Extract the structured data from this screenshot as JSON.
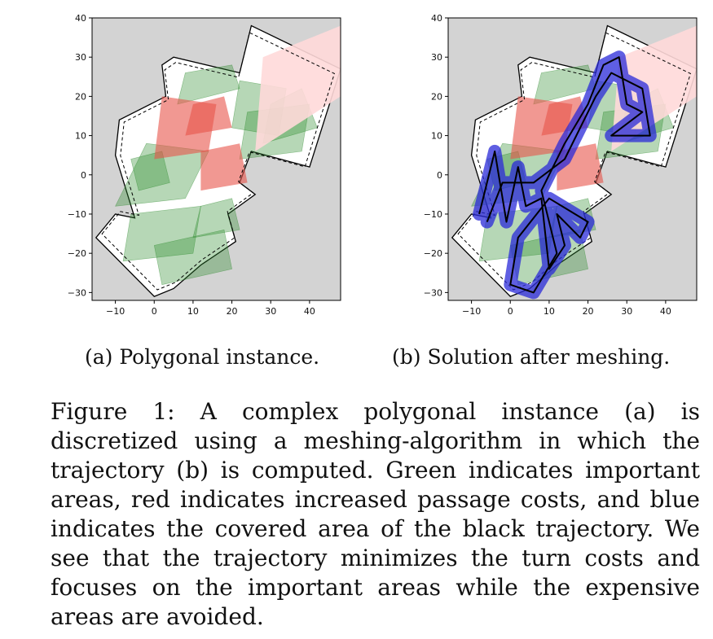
{
  "figure": {
    "subcaptions": {
      "a": "(a) Polygonal instance.",
      "b": "(b) Solution after meshing."
    },
    "caption": "Figure 1: A complex polygonal instance (a) is discretized using a meshing-algorithm in which the trajectory (b) is computed. Green indicates important areas, red indicates increased passage costs, and blue indicates the covered area of the black trajectory. We see that the trajectory minimizes the turn costs and focuses on the important areas while the expensive areas are avoided."
  },
  "chart_data": [
    {
      "type": "polygon-map",
      "panel": "a",
      "xlim": [
        -16,
        48
      ],
      "ylim": [
        -32,
        40
      ],
      "xticks": [
        -10,
        0,
        10,
        20,
        30,
        40
      ],
      "yticks": [
        -30,
        -20,
        -10,
        0,
        10,
        20,
        30,
        40
      ],
      "colors": {
        "background": "#d3d3d3",
        "important": "#2e8b2e",
        "costly": "#e8534a",
        "coverage": "#2a2ad8",
        "trajectory": "#000000"
      },
      "outline": [
        [
          -15,
          -16
        ],
        [
          -10,
          -10
        ],
        [
          -5,
          -11
        ],
        [
          -10,
          5
        ],
        [
          -9,
          14
        ],
        [
          3,
          20
        ],
        [
          2,
          28
        ],
        [
          5,
          30
        ],
        [
          22,
          26
        ],
        [
          25,
          38
        ],
        [
          48,
          27
        ],
        [
          40,
          2
        ],
        [
          25,
          6
        ],
        [
          22,
          -2
        ],
        [
          26,
          -5
        ],
        [
          19,
          -10
        ],
        [
          21,
          -17
        ],
        [
          12,
          -23
        ],
        [
          5,
          -29
        ],
        [
          0,
          -31
        ]
      ],
      "green_regions": [
        [
          [
            -10,
            -8
          ],
          [
            8,
            -6
          ],
          [
            14,
            6
          ],
          [
            -2,
            8
          ]
        ],
        [
          [
            -8,
            -22
          ],
          [
            10,
            -20
          ],
          [
            12,
            -8
          ],
          [
            -6,
            -10
          ]
        ],
        [
          [
            2,
            -28
          ],
          [
            20,
            -24
          ],
          [
            18,
            -14
          ],
          [
            0,
            -18
          ]
        ],
        [
          [
            22,
            4
          ],
          [
            38,
            6
          ],
          [
            40,
            18
          ],
          [
            24,
            16
          ]
        ],
        [
          [
            20,
            12
          ],
          [
            32,
            10
          ],
          [
            34,
            22
          ],
          [
            22,
            24
          ]
        ],
        [
          [
            28,
            8
          ],
          [
            42,
            12
          ],
          [
            38,
            22
          ],
          [
            30,
            18
          ]
        ],
        [
          [
            6,
            18
          ],
          [
            22,
            22
          ],
          [
            20,
            28
          ],
          [
            8,
            26
          ]
        ],
        [
          [
            -4,
            -4
          ],
          [
            4,
            -2
          ],
          [
            2,
            6
          ],
          [
            -6,
            4
          ]
        ],
        [
          [
            10,
            -16
          ],
          [
            22,
            -14
          ],
          [
            20,
            -6
          ],
          [
            12,
            -8
          ]
        ]
      ],
      "red_regions": [
        [
          [
            0,
            4
          ],
          [
            14,
            6
          ],
          [
            16,
            18
          ],
          [
            2,
            20
          ]
        ],
        [
          [
            8,
            10
          ],
          [
            20,
            12
          ],
          [
            18,
            20
          ],
          [
            10,
            18
          ]
        ],
        [
          [
            12,
            -4
          ],
          [
            24,
            -2
          ],
          [
            22,
            8
          ],
          [
            12,
            6
          ]
        ],
        [
          [
            26,
            6
          ],
          [
            48,
            20
          ],
          [
            48,
            38
          ],
          [
            28,
            30
          ]
        ]
      ]
    },
    {
      "type": "polygon-map",
      "panel": "b",
      "xlim": [
        -16,
        48
      ],
      "ylim": [
        -32,
        40
      ],
      "xticks": [
        -10,
        0,
        10,
        20,
        30,
        40
      ],
      "yticks": [
        -30,
        -20,
        -10,
        0,
        10,
        20,
        30,
        40
      ],
      "trajectory": [
        [
          -8,
          -10
        ],
        [
          -4,
          6
        ],
        [
          -1,
          -12
        ],
        [
          2,
          2
        ],
        [
          4,
          -8
        ],
        [
          8,
          -6
        ],
        [
          10,
          -24
        ],
        [
          14,
          -18
        ],
        [
          12,
          -10
        ],
        [
          18,
          -16
        ],
        [
          20,
          -12
        ],
        [
          10,
          -6
        ],
        [
          2,
          -16
        ],
        [
          0,
          -28
        ],
        [
          6,
          -30
        ],
        [
          12,
          -20
        ],
        [
          8,
          -4
        ],
        [
          14,
          8
        ],
        [
          20,
          18
        ],
        [
          24,
          28
        ],
        [
          28,
          30
        ],
        [
          30,
          18
        ],
        [
          34,
          16
        ],
        [
          26,
          10
        ],
        [
          36,
          10
        ],
        [
          34,
          22
        ],
        [
          26,
          26
        ],
        [
          22,
          20
        ],
        [
          14,
          4
        ],
        [
          6,
          -2
        ],
        [
          -2,
          -2
        ],
        [
          -6,
          -12
        ]
      ]
    }
  ]
}
